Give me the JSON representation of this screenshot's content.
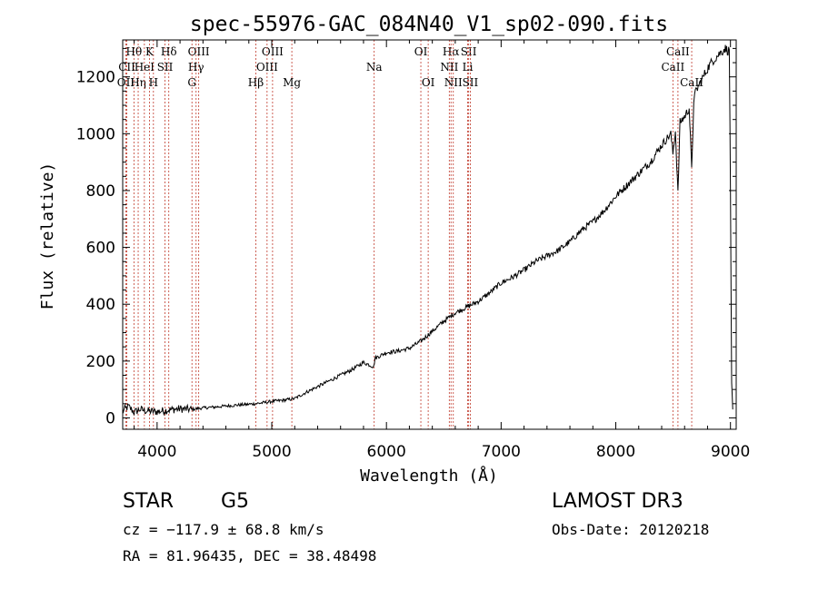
{
  "chart_data": {
    "type": "line",
    "title": "spec-55976-GAC_084N40_V1_sp02-090.fits",
    "xlabel": "Wavelength (Å)",
    "ylabel": "Flux (relative)",
    "xlim": [
      3700,
      9050
    ],
    "ylim": [
      -40,
      1330
    ],
    "xticks": [
      4000,
      5000,
      6000,
      7000,
      8000,
      9000
    ],
    "yticks": [
      0,
      200,
      400,
      600,
      800,
      1000,
      1200
    ],
    "series": [
      {
        "name": "flux",
        "x": [
          3700,
          3750,
          3800,
          3850,
          3900,
          4000,
          4100,
          4200,
          4300,
          4400,
          4500,
          4600,
          4700,
          4800,
          4900,
          5000,
          5100,
          5200,
          5300,
          5400,
          5500,
          5600,
          5700,
          5800,
          5890,
          5900,
          6000,
          6100,
          6200,
          6300,
          6400,
          6500,
          6600,
          6700,
          6800,
          6900,
          7000,
          7100,
          7200,
          7300,
          7400,
          7500,
          7600,
          7700,
          7800,
          7900,
          8000,
          8100,
          8200,
          8300,
          8400,
          8480,
          8498,
          8520,
          8542,
          8560,
          8600,
          8640,
          8662,
          8680,
          8700,
          8750,
          8800,
          8850,
          8900,
          8950,
          8990,
          9000,
          9010,
          9020
        ],
        "y": [
          25,
          40,
          20,
          30,
          25,
          22,
          28,
          32,
          30,
          35,
          38,
          42,
          45,
          48,
          52,
          58,
          62,
          68,
          90,
          110,
          130,
          150,
          170,
          195,
          180,
          210,
          230,
          235,
          245,
          270,
          305,
          340,
          370,
          390,
          410,
          440,
          475,
          495,
          520,
          550,
          570,
          590,
          620,
          660,
          690,
          730,
          780,
          820,
          860,
          900,
          960,
          1000,
          930,
          1010,
          790,
          1040,
          1060,
          1090,
          870,
          1120,
          1150,
          1190,
          1230,
          1260,
          1280,
          1300,
          1290,
          800,
          120,
          30
        ]
      }
    ],
    "lines": [
      {
        "label": "Hθ",
        "wl": 3798,
        "row": 1
      },
      {
        "label": "CII",
        "wl": 3736,
        "row": 2
      },
      {
        "label": "OII",
        "wl": 3727,
        "row": 3
      },
      {
        "label": "Hη",
        "wl": 3835,
        "row": 3
      },
      {
        "label": "HeI",
        "wl": 3889,
        "row": 2
      },
      {
        "label": "K",
        "wl": 3934,
        "row": 1
      },
      {
        "label": "H",
        "wl": 3968,
        "row": 3
      },
      {
        "label": "SII",
        "wl": 4069,
        "row": 2
      },
      {
        "label": "Hδ",
        "wl": 4102,
        "row": 1
      },
      {
        "label": "OIII",
        "wl": 4363,
        "row": 1
      },
      {
        "label": "Hγ",
        "wl": 4340,
        "row": 2
      },
      {
        "label": "G",
        "wl": 4304,
        "row": 3
      },
      {
        "label": "Hβ",
        "wl": 4861,
        "row": 3
      },
      {
        "label": "OIII",
        "wl": 5007,
        "row": 1
      },
      {
        "label": "OIII",
        "wl": 4959,
        "row": 2
      },
      {
        "label": "Mg",
        "wl": 5175,
        "row": 3
      },
      {
        "label": "Na",
        "wl": 5893,
        "row": 2
      },
      {
        "label": "OI",
        "wl": 6300,
        "row": 1
      },
      {
        "label": "OI",
        "wl": 6364,
        "row": 3
      },
      {
        "label": "Hα",
        "wl": 6563,
        "row": 1
      },
      {
        "label": "NII",
        "wl": 6548,
        "row": 2
      },
      {
        "label": "NII",
        "wl": 6583,
        "row": 3
      },
      {
        "label": "SII",
        "wl": 6717,
        "row": 1
      },
      {
        "label": "Li",
        "wl": 6708,
        "row": 2
      },
      {
        "label": "SII",
        "wl": 6731,
        "row": 3
      },
      {
        "label": "CaII",
        "wl": 8542,
        "row": 1
      },
      {
        "label": "CaII",
        "wl": 8498,
        "row": 2
      },
      {
        "label": "CaII",
        "wl": 8662,
        "row": 3
      }
    ]
  },
  "info": {
    "classification": "STAR",
    "subclass": "G5",
    "survey": "LAMOST DR3",
    "redshift": "cz = −117.9 ± 68.8 km/s",
    "obs_date": "Obs-Date: 20120218",
    "coords": "RA =  81.96435, DEC =  38.48498"
  }
}
